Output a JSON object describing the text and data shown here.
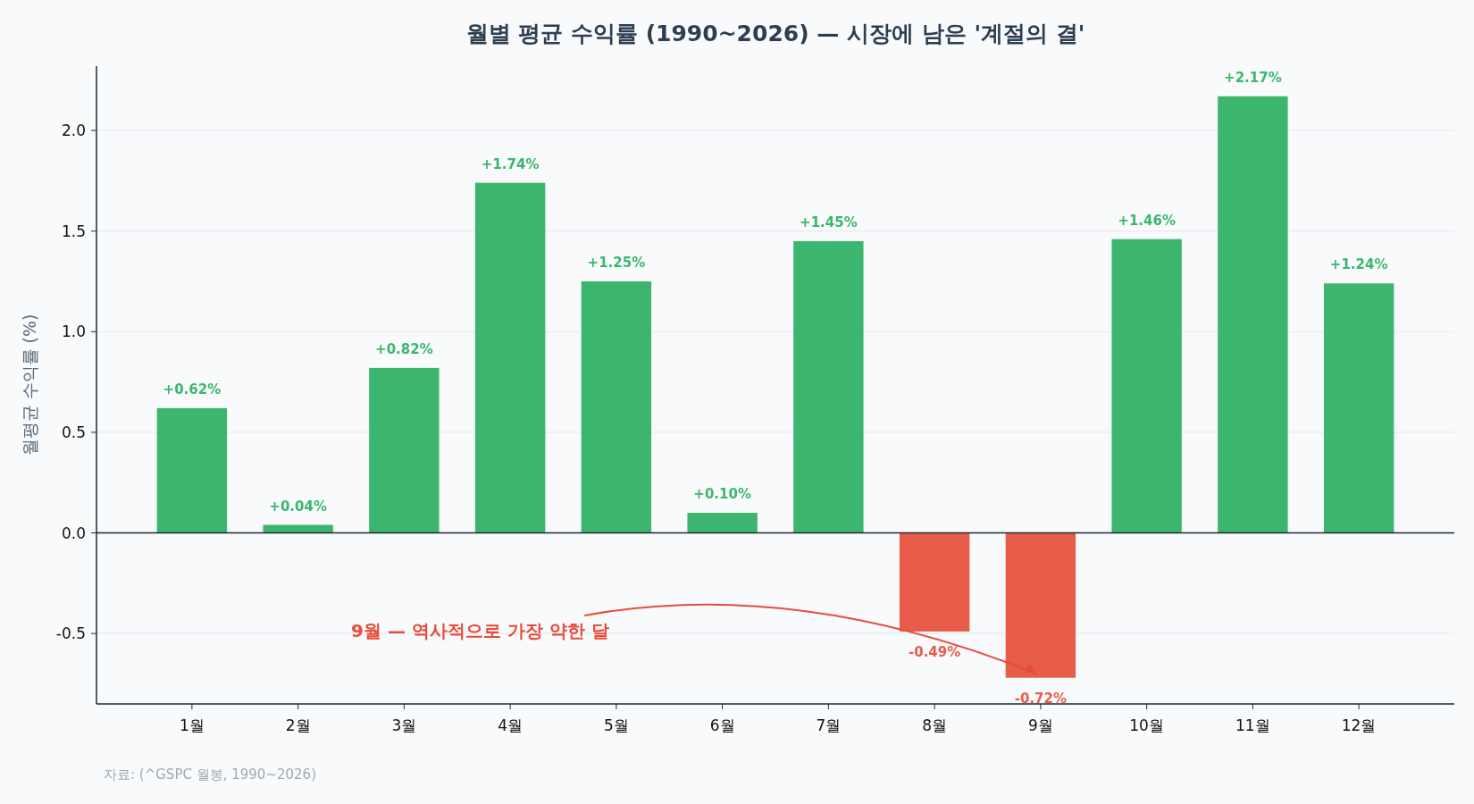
{
  "chart_data": {
    "type": "bar",
    "title": "월별 평균 수익률 (1990~2026) — 시장에 남은 '계절의 결'",
    "ylabel": "월평균 수익률 (%)",
    "categories": [
      "1월",
      "2월",
      "3월",
      "4월",
      "5월",
      "6월",
      "7월",
      "8월",
      "9월",
      "10월",
      "11월",
      "12월"
    ],
    "values": [
      0.62,
      0.04,
      0.82,
      1.74,
      1.25,
      0.1,
      1.45,
      -0.49,
      -0.72,
      1.46,
      2.17,
      1.24
    ],
    "colors": [
      "#3cb66e",
      "#3cb66e",
      "#3cb66e",
      "#3cb66e",
      "#3cb66e",
      "#3cb66e",
      "#3cb66e",
      "#e85c4a",
      "#e85c4a",
      "#3cb66e",
      "#3cb66e",
      "#3cb66e"
    ],
    "value_labels": [
      "+0.62%",
      "+0.04%",
      "+0.82%",
      "+1.74%",
      "+1.25%",
      "+0.10%",
      "+1.45%",
      "-0.49%",
      "-0.72%",
      "+1.46%",
      "+2.17%",
      "+1.24%"
    ],
    "ylim": [
      -0.85,
      2.32
    ],
    "yticks": [
      {
        "value": -0.5,
        "label": "-0.5"
      },
      {
        "value": 0,
        "label": "0.0"
      },
      {
        "value": 0.5,
        "label": "0.5"
      },
      {
        "value": 1,
        "label": "1.0"
      },
      {
        "value": 1.5,
        "label": "1.5"
      },
      {
        "value": 2,
        "label": "2.0"
      }
    ],
    "grid": "y",
    "annotations": [
      {
        "text": "9월 — 역사적으로 가장 약한 달",
        "x": "9월",
        "y": -0.72
      },
      "자료: (^GSPC 월봉, 1990~2026)"
    ]
  }
}
